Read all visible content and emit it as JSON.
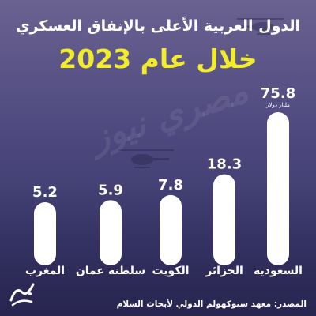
{
  "title_line1": "الدول العربية الأعلى بالإنفاق العسكري",
  "title_line2": "خلال عام 2023",
  "source": "المصدر: معهد ستوكهولم الدولي لأبحاث السلام",
  "colors": {
    "bar": "#ffffff",
    "title_accent": "#f1ec2d",
    "text": "#ffffff"
  },
  "logo_icon": "brand-logo-icon",
  "chart_data": {
    "type": "bar",
    "title": "الدول العربية الأعلى بالإنفاق العسكري خلال عام 2023",
    "categories": [
      "السعودية",
      "الجزائر",
      "الكويت",
      "سلطنة عمان",
      "المغرب"
    ],
    "values": [
      75.8,
      18.3,
      7.8,
      5.9,
      5.2
    ],
    "value_labels": [
      "75.8",
      "18.3",
      "7.8",
      "5.9",
      "5.2"
    ],
    "unit_annotation": "مليار دولار",
    "xlabel": "",
    "ylabel": "",
    "grid": false,
    "legend": "none"
  }
}
